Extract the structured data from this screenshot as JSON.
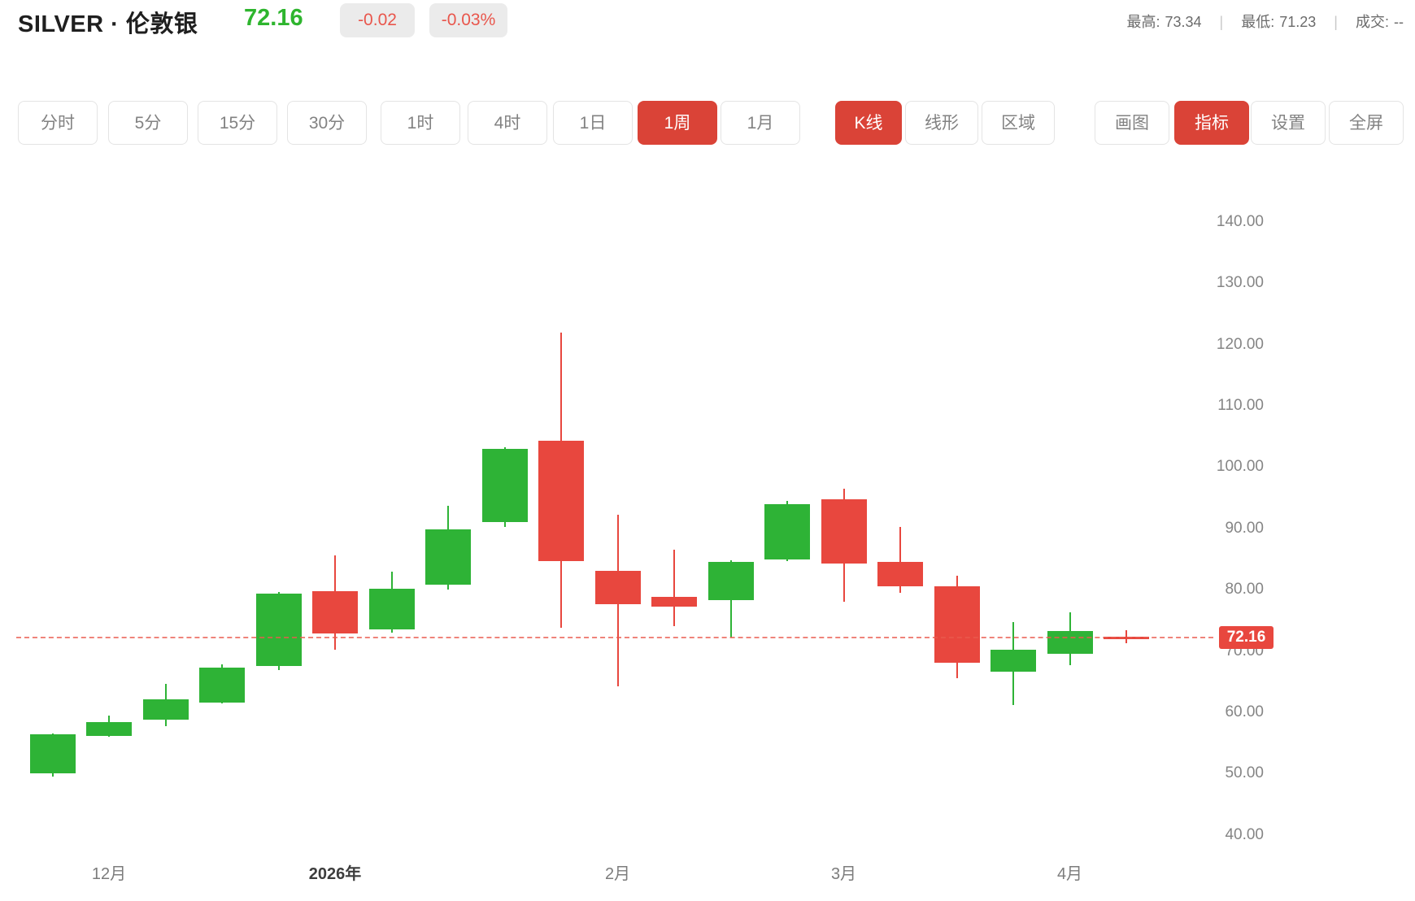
{
  "header": {
    "symbol": "SILVER · 伦敦银",
    "price": "72.16",
    "change": "-0.02",
    "change_percent": "-0.03%",
    "divider": "|",
    "stats": [
      {
        "label": "最高:",
        "value": "73.34"
      },
      {
        "label": "最低:",
        "value": "71.23"
      },
      {
        "label": "成交:",
        "value": "--"
      }
    ]
  },
  "toolbar": {
    "periods": [
      {
        "id": "time-share",
        "label": "分时",
        "active": false
      },
      {
        "id": "5min",
        "label": "5分",
        "active": false
      },
      {
        "id": "15min",
        "label": "15分",
        "active": false
      },
      {
        "id": "30min",
        "label": "30分",
        "active": false
      },
      {
        "id": "1hour",
        "label": "1时",
        "active": false
      },
      {
        "id": "4hour",
        "label": "4时",
        "active": false
      },
      {
        "id": "1day",
        "label": "1日",
        "active": false
      },
      {
        "id": "1week",
        "label": "1周",
        "active": true
      },
      {
        "id": "1month",
        "label": "1月",
        "active": false
      }
    ],
    "chart_types": [
      {
        "id": "candle",
        "label": "K线",
        "active": true
      },
      {
        "id": "line",
        "label": "线形",
        "active": false
      },
      {
        "id": "area",
        "label": "区域",
        "active": false
      }
    ],
    "tools": [
      {
        "id": "draw",
        "label": "画图",
        "active": false
      },
      {
        "id": "indicator",
        "label": "指标",
        "active": true
      },
      {
        "id": "settings",
        "label": "设置",
        "active": false
      },
      {
        "id": "fullscreen",
        "label": "全屏",
        "active": false
      }
    ]
  },
  "chart_data": {
    "type": "candlestick",
    "interval": "1周",
    "colors": {
      "up": "#2eb336",
      "down": "#e8473e",
      "current_line": "#e95a4e"
    },
    "y_axis": {
      "min": 40,
      "max": 140,
      "step": 10,
      "ticks": [
        "140.00",
        "130.00",
        "120.00",
        "110.00",
        "100.00",
        "90.00",
        "80.00",
        "70.00",
        "60.00",
        "50.00",
        "40.00"
      ]
    },
    "x_axis": {
      "labels": [
        {
          "text": "12月",
          "candle_index": 1,
          "year_emphasis": false
        },
        {
          "text": "2026年",
          "candle_index": 5,
          "year_emphasis": true
        },
        {
          "text": "2月",
          "candle_index": 10,
          "year_emphasis": false
        },
        {
          "text": "3月",
          "candle_index": 14,
          "year_emphasis": false
        },
        {
          "text": "4月",
          "candle_index": 18,
          "year_emphasis": false
        }
      ]
    },
    "series": [
      {
        "open": 50.0,
        "high": 56.6,
        "low": 49.5,
        "close": 56.4,
        "direction": "up"
      },
      {
        "open": 56.2,
        "high": 59.4,
        "low": 56.0,
        "close": 58.4,
        "direction": "up"
      },
      {
        "open": 58.8,
        "high": 64.7,
        "low": 57.8,
        "close": 62.1,
        "direction": "up"
      },
      {
        "open": 61.6,
        "high": 67.8,
        "low": 61.4,
        "close": 67.3,
        "direction": "up"
      },
      {
        "open": 67.5,
        "high": 79.6,
        "low": 66.9,
        "close": 79.3,
        "direction": "up"
      },
      {
        "open": 79.7,
        "high": 85.6,
        "low": 70.2,
        "close": 72.8,
        "direction": "down"
      },
      {
        "open": 73.5,
        "high": 82.9,
        "low": 73.0,
        "close": 80.1,
        "direction": "up"
      },
      {
        "open": 80.8,
        "high": 93.7,
        "low": 80.0,
        "close": 89.9,
        "direction": "up"
      },
      {
        "open": 91.1,
        "high": 103.3,
        "low": 90.2,
        "close": 103.0,
        "direction": "up"
      },
      {
        "open": 104.3,
        "high": 121.9,
        "low": 73.8,
        "close": 84.7,
        "direction": "down"
      },
      {
        "open": 83.1,
        "high": 92.3,
        "low": 64.2,
        "close": 77.7,
        "direction": "down"
      },
      {
        "open": 78.8,
        "high": 86.5,
        "low": 74.0,
        "close": 77.3,
        "direction": "down"
      },
      {
        "open": 78.3,
        "high": 84.8,
        "low": 72.2,
        "close": 84.6,
        "direction": "up"
      },
      {
        "open": 85.0,
        "high": 94.5,
        "low": 84.7,
        "close": 93.9,
        "direction": "up"
      },
      {
        "open": 94.8,
        "high": 96.5,
        "low": 78.1,
        "close": 84.3,
        "direction": "down"
      },
      {
        "open": 84.6,
        "high": 90.2,
        "low": 79.5,
        "close": 80.5,
        "direction": "down"
      },
      {
        "open": 80.5,
        "high": 82.3,
        "low": 65.6,
        "close": 68.1,
        "direction": "down"
      },
      {
        "open": 66.6,
        "high": 74.7,
        "low": 61.2,
        "close": 70.2,
        "direction": "up"
      },
      {
        "open": 69.5,
        "high": 76.3,
        "low": 67.7,
        "close": 73.3,
        "direction": "up"
      },
      {
        "open": 72.35,
        "high": 73.34,
        "low": 71.23,
        "close": 72.16,
        "direction": "down"
      }
    ],
    "current_price": {
      "value": 72.16,
      "label": "72.16"
    }
  }
}
